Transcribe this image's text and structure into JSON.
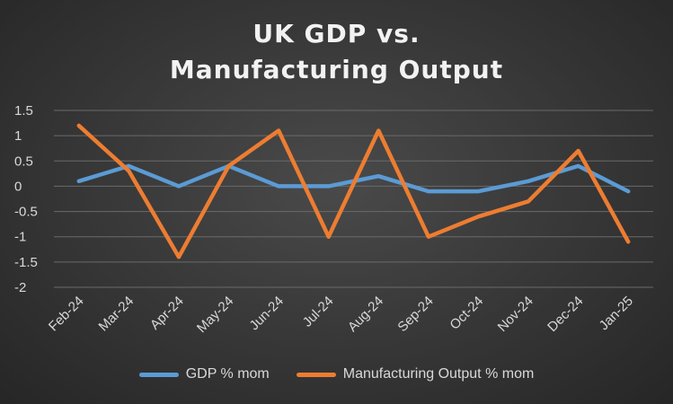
{
  "chart_data": {
    "type": "line",
    "title_lines": [
      "UK GDP vs.",
      "Manufacturing Output"
    ],
    "categories": [
      "Feb-24",
      "Mar-24",
      "Apr-24",
      "May-24",
      "Jun-24",
      "Jul-24",
      "Aug-24",
      "Sep-24",
      "Oct-24",
      "Nov-24",
      "Dec-24",
      "Jan-25"
    ],
    "ylim": [
      -2,
      1.5
    ],
    "yticks": [
      1.5,
      1,
      0.5,
      0,
      -0.5,
      -1,
      -1.5,
      -2
    ],
    "ytick_labels": [
      "1.5",
      "1",
      "0.5",
      "0",
      "-0.5",
      "-1",
      "-1.5",
      "-2"
    ],
    "grid": true,
    "legend_position": "bottom",
    "series": [
      {
        "name": "GDP % mom",
        "color": "#5b9bd5",
        "values": [
          0.1,
          0.4,
          0.0,
          0.4,
          0.0,
          0.0,
          0.2,
          -0.1,
          -0.1,
          0.1,
          0.4,
          -0.1
        ]
      },
      {
        "name": "Manufacturing Output % mom",
        "color": "#ed7d31",
        "values": [
          1.2,
          0.3,
          -1.4,
          0.4,
          1.1,
          -1.0,
          1.1,
          -1.0,
          -0.6,
          -0.3,
          0.7,
          -1.1
        ]
      }
    ]
  }
}
